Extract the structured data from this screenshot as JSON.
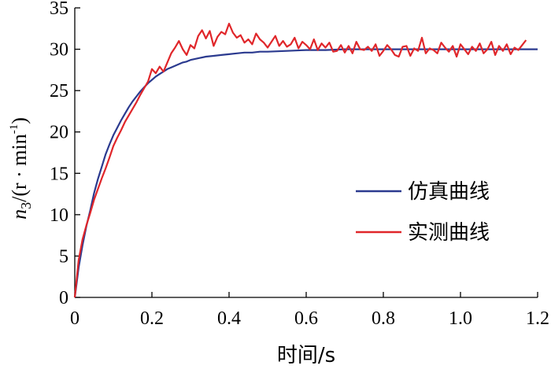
{
  "chart_data": {
    "type": "line",
    "title": "",
    "xlabel": "时间/s",
    "ylabel": {
      "var": "n",
      "sub": "3",
      "rest": "/(r · min",
      "sup": "-1",
      "close": ")"
    },
    "xlim": [
      0,
      1.2
    ],
    "ylim": [
      0,
      35
    ],
    "xticks": [
      0,
      0.2,
      0.4,
      0.6,
      0.8,
      1.0,
      1.2
    ],
    "xtick_labels": [
      "0",
      "0.2",
      "0.4",
      "0.6",
      "0.8",
      "1.0",
      "1.2"
    ],
    "yticks": [
      0,
      5,
      10,
      15,
      20,
      25,
      30,
      35
    ],
    "ytick_labels": [
      "0",
      "5",
      "10",
      "15",
      "20",
      "25",
      "30",
      "35"
    ],
    "grid": false,
    "legend_position": "center-right",
    "series": [
      {
        "name": "仿真曲线",
        "color": "#2b3a8f",
        "x": [
          0,
          0.005,
          0.01,
          0.02,
          0.03,
          0.04,
          0.05,
          0.06,
          0.07,
          0.08,
          0.09,
          0.1,
          0.11,
          0.12,
          0.13,
          0.14,
          0.15,
          0.16,
          0.17,
          0.18,
          0.19,
          0.2,
          0.21,
          0.22,
          0.23,
          0.24,
          0.25,
          0.26,
          0.27,
          0.28,
          0.29,
          0.3,
          0.32,
          0.34,
          0.36,
          0.38,
          0.4,
          0.42,
          0.44,
          0.46,
          0.48,
          0.5,
          0.55,
          0.6,
          0.65,
          0.7,
          0.75,
          0.8,
          0.85,
          0.9,
          0.95,
          1.0,
          1.05,
          1.1,
          1.15,
          1.2
        ],
        "y": [
          0,
          1.8,
          3.6,
          6.3,
          8.6,
          10.5,
          12.6,
          14.3,
          15.8,
          17.3,
          18.5,
          19.6,
          20.5,
          21.4,
          22.2,
          23.0,
          23.7,
          24.3,
          24.9,
          25.4,
          25.9,
          26.3,
          26.7,
          27.0,
          27.3,
          27.6,
          27.8,
          28.0,
          28.2,
          28.4,
          28.5,
          28.7,
          28.9,
          29.1,
          29.2,
          29.3,
          29.4,
          29.5,
          29.6,
          29.6,
          29.7,
          29.7,
          29.8,
          29.9,
          29.9,
          30.0,
          30.0,
          30.0,
          30.0,
          30.0,
          30.0,
          30.0,
          30.0,
          30.0,
          30.0,
          30.0
        ]
      },
      {
        "name": "实测曲线",
        "color": "#e0262a",
        "x": [
          0,
          0.01,
          0.02,
          0.03,
          0.04,
          0.05,
          0.06,
          0.07,
          0.08,
          0.09,
          0.1,
          0.11,
          0.12,
          0.13,
          0.14,
          0.15,
          0.16,
          0.17,
          0.18,
          0.19,
          0.2,
          0.21,
          0.22,
          0.23,
          0.24,
          0.25,
          0.26,
          0.27,
          0.28,
          0.29,
          0.3,
          0.31,
          0.32,
          0.33,
          0.34,
          0.35,
          0.36,
          0.37,
          0.38,
          0.39,
          0.4,
          0.41,
          0.42,
          0.43,
          0.44,
          0.45,
          0.46,
          0.47,
          0.48,
          0.49,
          0.5,
          0.51,
          0.52,
          0.53,
          0.54,
          0.55,
          0.56,
          0.57,
          0.58,
          0.59,
          0.6,
          0.61,
          0.62,
          0.63,
          0.64,
          0.65,
          0.66,
          0.67,
          0.68,
          0.69,
          0.7,
          0.71,
          0.72,
          0.73,
          0.74,
          0.75,
          0.76,
          0.77,
          0.78,
          0.79,
          0.8,
          0.81,
          0.82,
          0.83,
          0.84,
          0.85,
          0.86,
          0.87,
          0.88,
          0.89,
          0.9,
          0.91,
          0.92,
          0.93,
          0.94,
          0.95,
          0.96,
          0.97,
          0.98,
          0.99,
          1.0,
          1.01,
          1.02,
          1.03,
          1.04,
          1.05,
          1.06,
          1.07,
          1.08,
          1.09,
          1.1,
          1.11,
          1.12,
          1.13,
          1.14,
          1.15,
          1.16,
          1.17
        ],
        "y": [
          0,
          4.5,
          7.0,
          8.7,
          10.2,
          11.8,
          13.1,
          14.4,
          15.6,
          16.9,
          18.3,
          19.3,
          20.2,
          21.2,
          22.0,
          22.8,
          23.6,
          24.5,
          25.3,
          26.1,
          27.6,
          27.1,
          27.9,
          27.3,
          28.4,
          29.5,
          30.2,
          31.0,
          30.0,
          29.3,
          30.5,
          30.1,
          31.6,
          32.3,
          31.3,
          32.2,
          30.4,
          31.5,
          32.1,
          31.8,
          33.1,
          32.0,
          31.4,
          31.7,
          30.8,
          31.2,
          30.6,
          31.9,
          31.2,
          30.8,
          30.2,
          30.9,
          31.6,
          30.4,
          31.0,
          30.3,
          30.6,
          31.4,
          30.1,
          30.9,
          30.5,
          30.0,
          31.2,
          29.9,
          30.7,
          30.2,
          30.8,
          29.7,
          29.8,
          30.5,
          29.6,
          30.4,
          29.5,
          30.9,
          30.0,
          29.9,
          30.3,
          29.8,
          30.6,
          29.2,
          29.8,
          30.5,
          30.0,
          29.3,
          29.1,
          30.3,
          30.4,
          29.2,
          30.1,
          29.8,
          31.4,
          29.5,
          30.1,
          29.9,
          29.5,
          30.8,
          30.2,
          29.7,
          30.4,
          29.1,
          30.6,
          30.0,
          29.4,
          30.3,
          29.8,
          30.7,
          29.5,
          30.0,
          30.9,
          29.3,
          30.4,
          29.8,
          30.6,
          29.4,
          30.2,
          29.9,
          30.5,
          31.1
        ]
      }
    ]
  }
}
